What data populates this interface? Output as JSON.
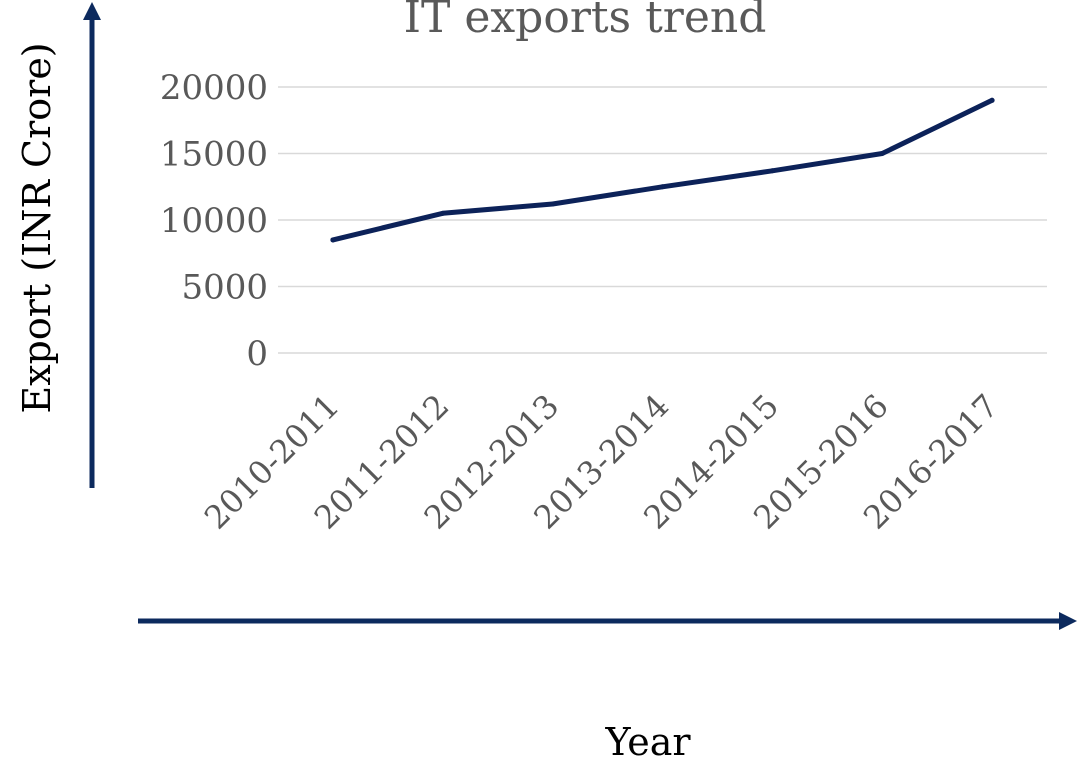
{
  "chart_data": {
    "type": "line",
    "title": "IT exports trend",
    "xlabel": "Year",
    "ylabel": "Export (INR Crore)",
    "categories": [
      "2010-2011",
      "2011-2012",
      "2012-2013",
      "2013-2014",
      "2014-2015",
      "2015-2016",
      "2016-2017"
    ],
    "series": [
      {
        "values": [
          8500,
          10500,
          11200,
          12500,
          13700,
          15000,
          19000
        ]
      }
    ],
    "ylim": [
      0,
      20000
    ],
    "yticks": [
      "0",
      "5000",
      "10000",
      "15000",
      "20000"
    ],
    "grid": true,
    "colors": {
      "line": "#0c2259",
      "axis_arrow": "#0c2a5e",
      "grid": "#d9d9d9",
      "text": "#595959"
    }
  }
}
